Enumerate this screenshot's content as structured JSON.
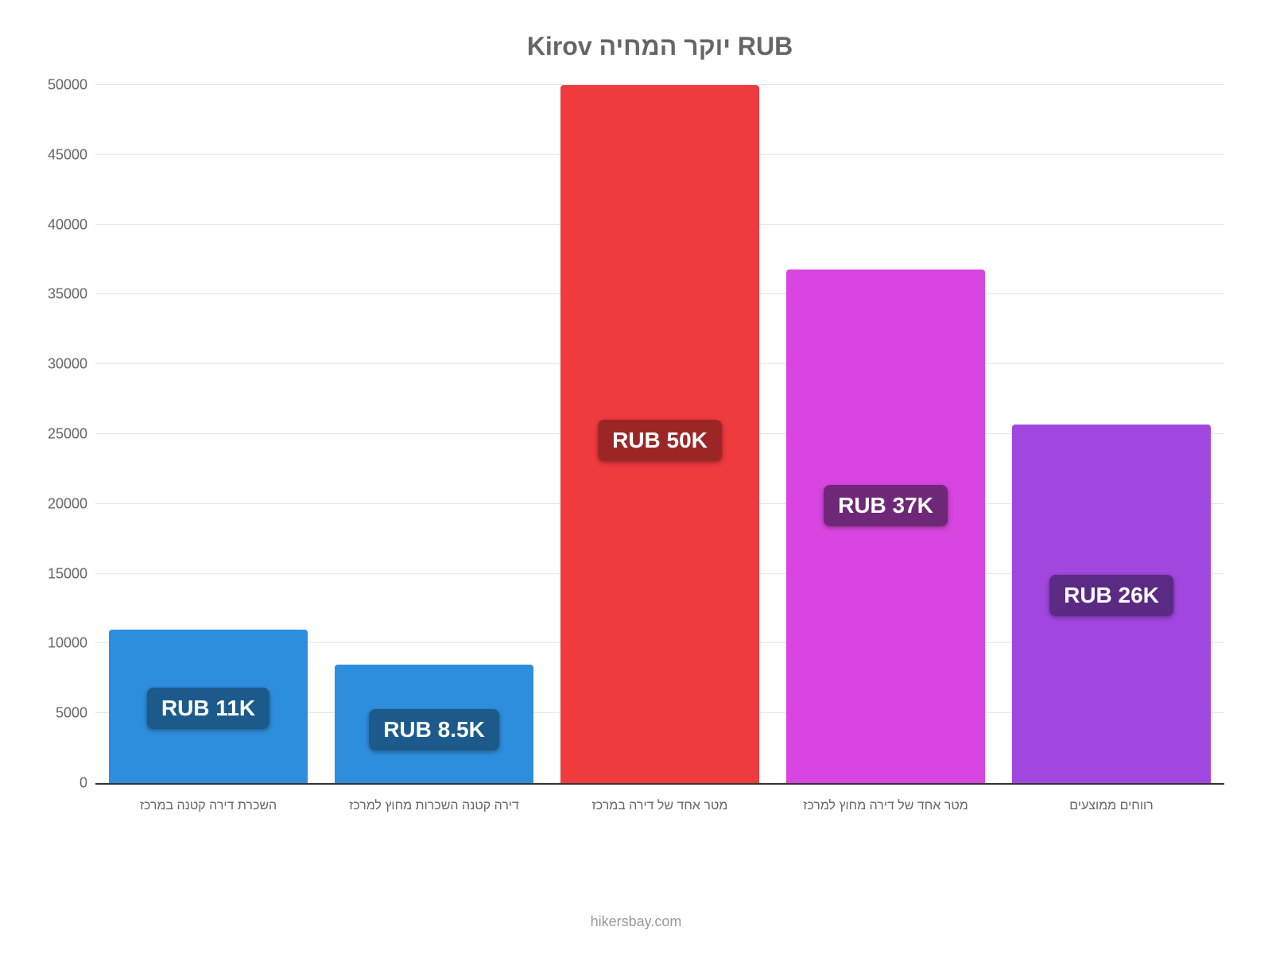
{
  "chart": {
    "type": "bar",
    "title": "Kirov יוקר המחיה RUB",
    "title_color": "#666666",
    "title_fontsize": 32,
    "background_color": "#ffffff",
    "ylim": [
      0,
      50000
    ],
    "ytick_step": 5000,
    "yticks": [
      0,
      5000,
      10000,
      15000,
      20000,
      25000,
      30000,
      35000,
      40000,
      45000,
      50000
    ],
    "grid_color": "#e6e6e6",
    "axis_line_color": "#333333",
    "axis_label_color": "#666666",
    "axis_label_fontsize": 18,
    "x_label_fontsize": 16,
    "bar_width": 0.88,
    "badge_fontsize": 28,
    "categories": [
      "השכרת דירה קטנה במרכז",
      "דירה קטנה השכרות מחוץ למרכז",
      "מטר אחד של דירה במרכז",
      "מטר אחד של דירה מחוץ למרכז",
      "רווחים ממוצעים"
    ],
    "values": [
      11000,
      8500,
      50000,
      36800,
      25700
    ],
    "bar_colors": [
      "#2e8ede",
      "#2e8ede",
      "#ef3a3e",
      "#d845e0",
      "#a246e0"
    ],
    "badge_colors": [
      "#1b5a8a",
      "#1b5a8a",
      "#9c2626",
      "#6f2877",
      "#5a2a84"
    ],
    "badge_labels": [
      "RUB 11K",
      "RUB 8.5K",
      "RUB 50K",
      "RUB 37K",
      "RUB 26K"
    ],
    "badge_offsets_pct": [
      38,
      38,
      48,
      42,
      42
    ],
    "footer": "hikersbay.com",
    "footer_color": "#999999"
  }
}
